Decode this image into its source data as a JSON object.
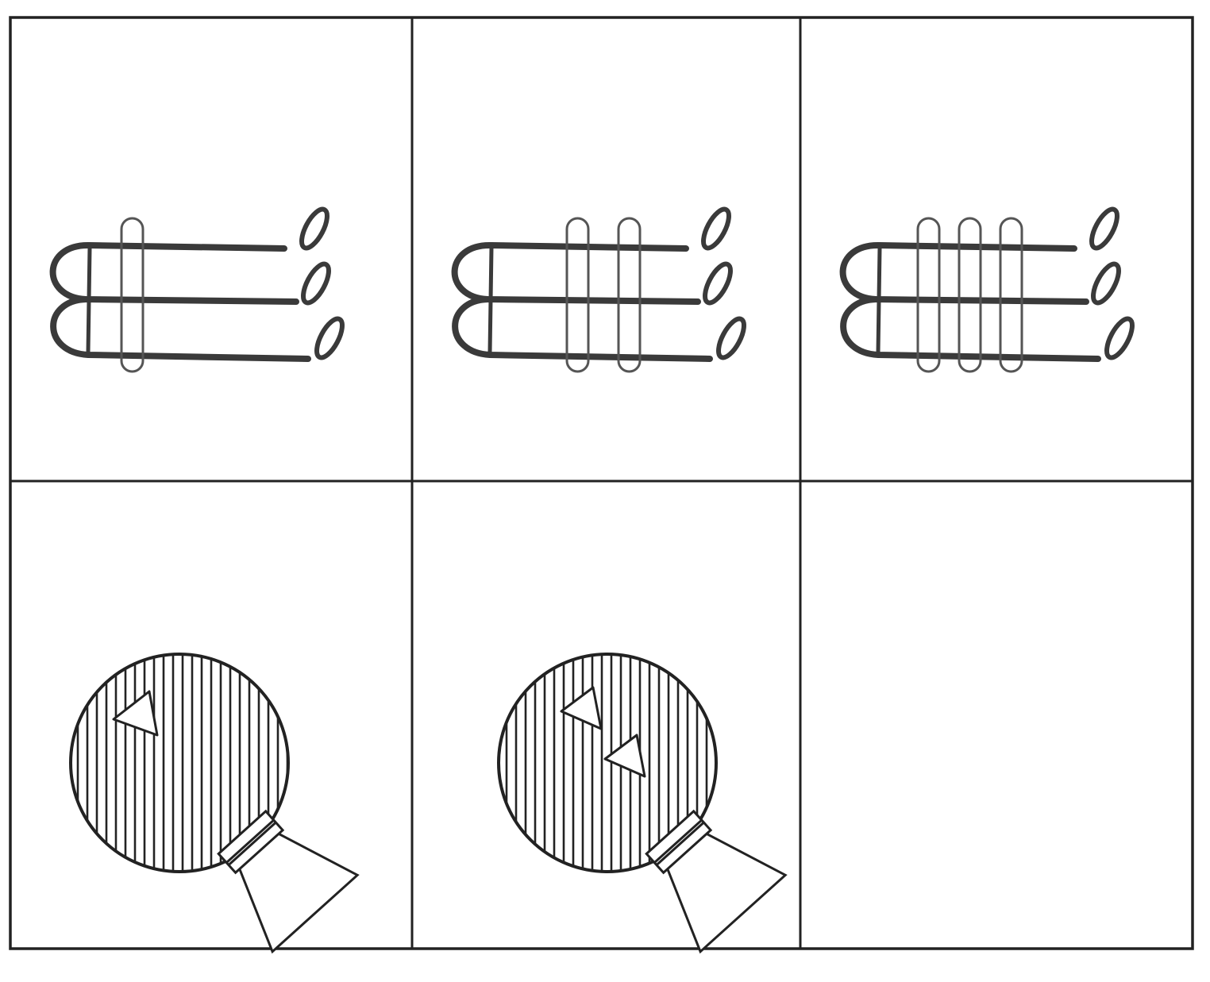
{
  "colors": {
    "background": "#ffffff",
    "line": "#222222",
    "wire": "#3a3a3a"
  },
  "puzzle": {
    "rows": 2,
    "columns": 3,
    "cells": [
      {
        "row": 1,
        "col": 1,
        "figure": "hairpin-stack",
        "hairpins": 3,
        "rings": 1
      },
      {
        "row": 1,
        "col": 2,
        "figure": "hairpin-stack",
        "hairpins": 3,
        "rings": 2
      },
      {
        "row": 1,
        "col": 3,
        "figure": "hairpin-stack",
        "hairpins": 3,
        "rings": 3
      },
      {
        "row": 2,
        "col": 1,
        "figure": "striped-ball-with-funnel",
        "triangles": 1
      },
      {
        "row": 2,
        "col": 2,
        "figure": "striped-ball-with-funnel",
        "triangles": 2
      },
      {
        "row": 2,
        "col": 3,
        "figure": "empty"
      }
    ]
  }
}
